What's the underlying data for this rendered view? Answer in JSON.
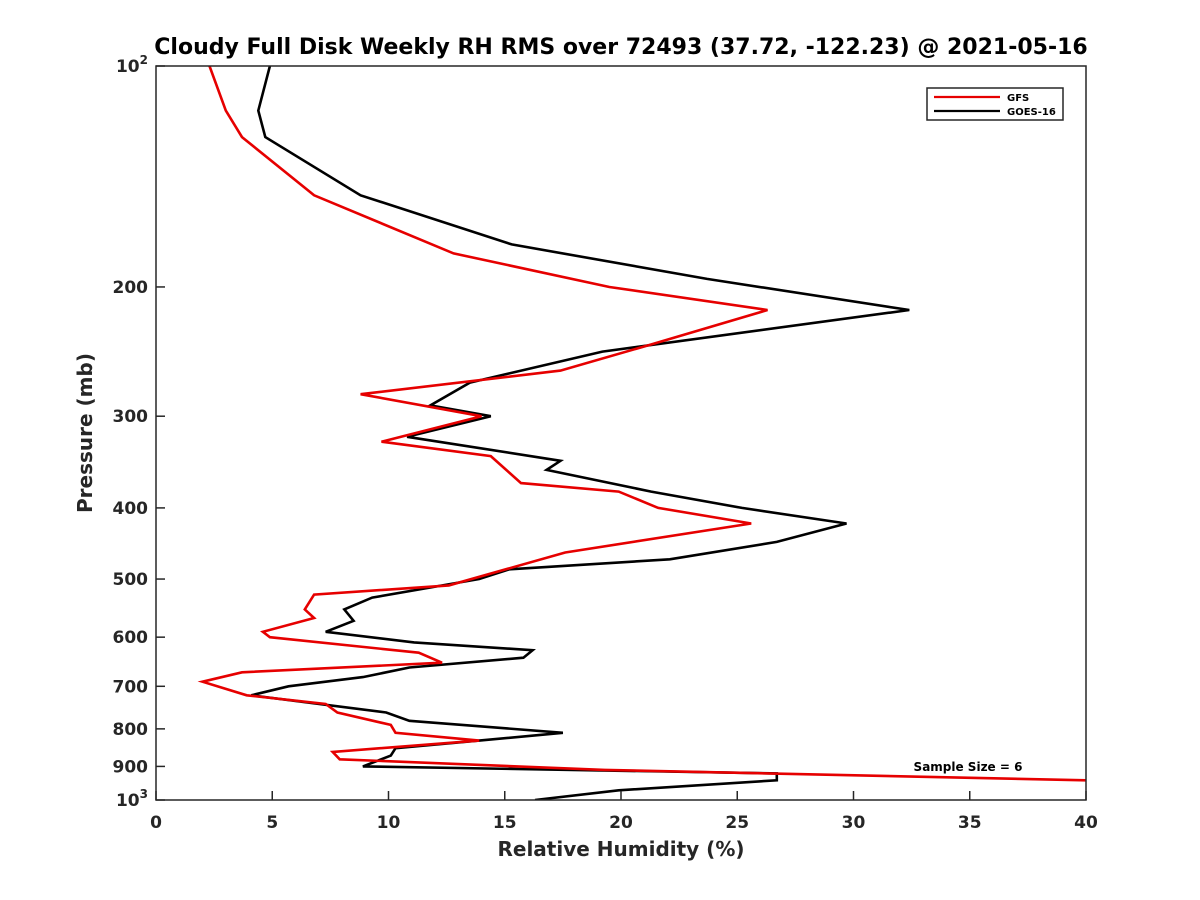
{
  "chart_data": {
    "type": "line",
    "title": "Cloudy Full Disk Weekly RH RMS over 72493 (37.72, -122.23) @ 2021-05-16",
    "xlabel": "Relative Humidity (%)",
    "ylabel": "Pressure (mb)",
    "xlim": [
      0,
      40
    ],
    "ylim": [
      100,
      1000
    ],
    "yscale": "log",
    "yreversed": true,
    "grid": false,
    "legend_position": "top-right",
    "x_ticks": [
      "0",
      "5",
      "10",
      "15",
      "20",
      "25",
      "30",
      "35",
      "40"
    ],
    "y_ticks": [
      {
        "value": 100,
        "base": "10",
        "exp": "2"
      },
      {
        "value": 200,
        "label": "200"
      },
      {
        "value": 300,
        "label": "300"
      },
      {
        "value": 400,
        "label": "400"
      },
      {
        "value": 500,
        "label": "500"
      },
      {
        "value": 600,
        "label": "600"
      },
      {
        "value": 700,
        "label": "700"
      },
      {
        "value": 800,
        "label": "800"
      },
      {
        "value": 900,
        "label": "900"
      },
      {
        "value": 1000,
        "base": "10",
        "exp": "3"
      }
    ],
    "annotation": "Sample Size = 6",
    "series": [
      {
        "name": "GFS",
        "color": "#e60000",
        "points": [
          [
            2.3,
            100
          ],
          [
            3.0,
            115
          ],
          [
            3.7,
            125
          ],
          [
            6.8,
            150
          ],
          [
            12.8,
            180
          ],
          [
            19.5,
            200
          ],
          [
            26.3,
            215
          ],
          [
            21.2,
            240
          ],
          [
            17.4,
            260
          ],
          [
            8.8,
            280
          ],
          [
            14.0,
            300
          ],
          [
            9.7,
            325
          ],
          [
            14.4,
            340
          ],
          [
            15.7,
            370
          ],
          [
            19.9,
            380
          ],
          [
            21.6,
            400
          ],
          [
            25.6,
            420
          ],
          [
            17.6,
            460
          ],
          [
            12.6,
            510
          ],
          [
            6.8,
            525
          ],
          [
            6.4,
            550
          ],
          [
            6.8,
            565
          ],
          [
            4.6,
            590
          ],
          [
            4.9,
            600
          ],
          [
            11.3,
            630
          ],
          [
            12.3,
            650
          ],
          [
            3.7,
            670
          ],
          [
            2.0,
            690
          ],
          [
            3.9,
            720
          ],
          [
            7.3,
            740
          ],
          [
            7.8,
            760
          ],
          [
            10.1,
            790
          ],
          [
            10.3,
            810
          ],
          [
            13.9,
            830
          ],
          [
            7.6,
            860
          ],
          [
            7.9,
            880
          ],
          [
            19.3,
            910
          ],
          [
            40.0,
            940
          ]
        ]
      },
      {
        "name": "GOES-16",
        "color": "#000000",
        "points": [
          [
            4.9,
            100
          ],
          [
            4.4,
            115
          ],
          [
            4.7,
            125
          ],
          [
            8.8,
            150
          ],
          [
            15.3,
            175
          ],
          [
            23.7,
            195
          ],
          [
            32.4,
            215
          ],
          [
            19.2,
            245
          ],
          [
            13.5,
            270
          ],
          [
            11.8,
            290
          ],
          [
            14.4,
            300
          ],
          [
            10.8,
            320
          ],
          [
            17.4,
            345
          ],
          [
            16.8,
            355
          ],
          [
            21.3,
            380
          ],
          [
            25.2,
            400
          ],
          [
            29.7,
            420
          ],
          [
            26.7,
            445
          ],
          [
            22.1,
            470
          ],
          [
            15.2,
            485
          ],
          [
            13.9,
            500
          ],
          [
            9.3,
            530
          ],
          [
            8.1,
            550
          ],
          [
            8.5,
            570
          ],
          [
            7.3,
            590
          ],
          [
            11.1,
            610
          ],
          [
            16.2,
            625
          ],
          [
            15.8,
            640
          ],
          [
            10.9,
            660
          ],
          [
            8.9,
            680
          ],
          [
            5.7,
            700
          ],
          [
            4.1,
            720
          ],
          [
            9.9,
            760
          ],
          [
            10.9,
            780
          ],
          [
            17.5,
            810
          ],
          [
            13.9,
            830
          ],
          [
            10.3,
            850
          ],
          [
            10.1,
            870
          ],
          [
            8.9,
            900
          ],
          [
            26.7,
            920
          ],
          [
            26.7,
            940
          ],
          [
            19.9,
            970
          ],
          [
            16.3,
            1000
          ]
        ]
      }
    ]
  }
}
